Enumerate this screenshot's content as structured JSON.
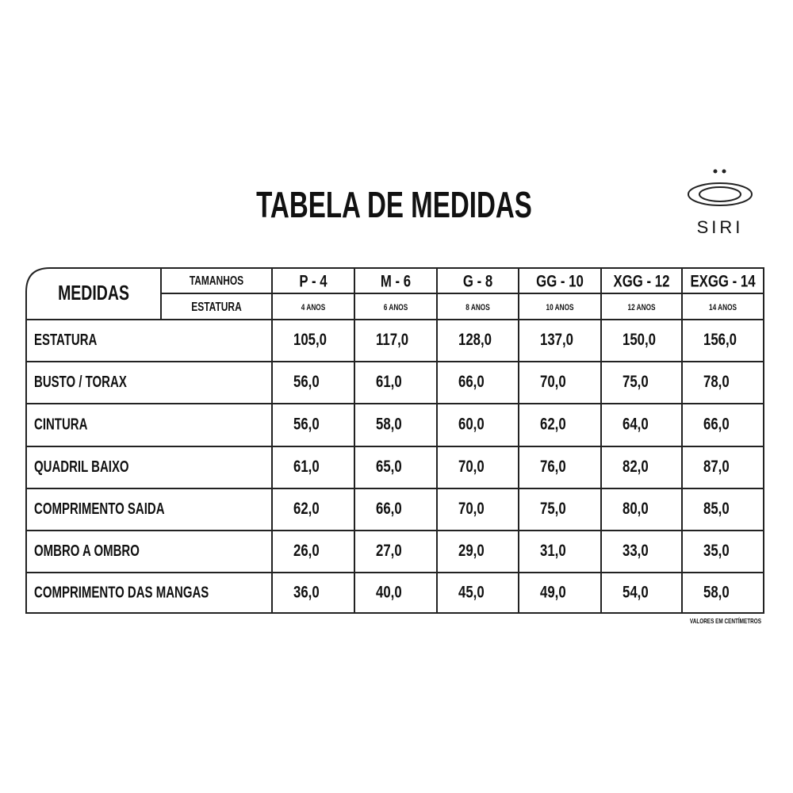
{
  "header": {
    "title": "TABELA DE MEDIDAS",
    "brand": "SIRI"
  },
  "table": {
    "corner": "MEDIDAS",
    "size_label": "TAMANHOS",
    "height_label": "ESTATURA",
    "sizes": [
      "P - 4",
      "M - 6",
      "G - 8",
      "GG - 10",
      "XGG - 12",
      "EXGG - 14"
    ],
    "ages": [
      "4 ANOS",
      "6 ANOS",
      "8 ANOS",
      "10 ANOS",
      "12 ANOS",
      "14 ANOS"
    ],
    "rows": [
      [
        "ESTATURA",
        "105,0",
        "117,0",
        "128,0",
        "137,0",
        "150,0",
        "156,0"
      ],
      [
        "BUSTO / TORAX",
        "56,0",
        "61,0",
        "66,0",
        "70,0",
        "75,0",
        "78,0"
      ],
      [
        "CINTURA",
        "56,0",
        "58,0",
        "60,0",
        "62,0",
        "64,0",
        "66,0"
      ],
      [
        "QUADRIL BAIXO",
        "61,0",
        "65,0",
        "70,0",
        "76,0",
        "82,0",
        "87,0"
      ],
      [
        "COMPRIMENTO SAIDA",
        "62,0",
        "66,0",
        "70,0",
        "75,0",
        "80,0",
        "85,0"
      ],
      [
        "OMBRO A OMBRO",
        "26,0",
        "27,0",
        "29,0",
        "31,0",
        "33,0",
        "35,0"
      ],
      [
        "COMPRIMENTO DAS MANGAS",
        "36,0",
        "40,0",
        "45,0",
        "49,0",
        "54,0",
        "58,0"
      ]
    ],
    "note": "VALORES EM CENTÍMETROS"
  }
}
